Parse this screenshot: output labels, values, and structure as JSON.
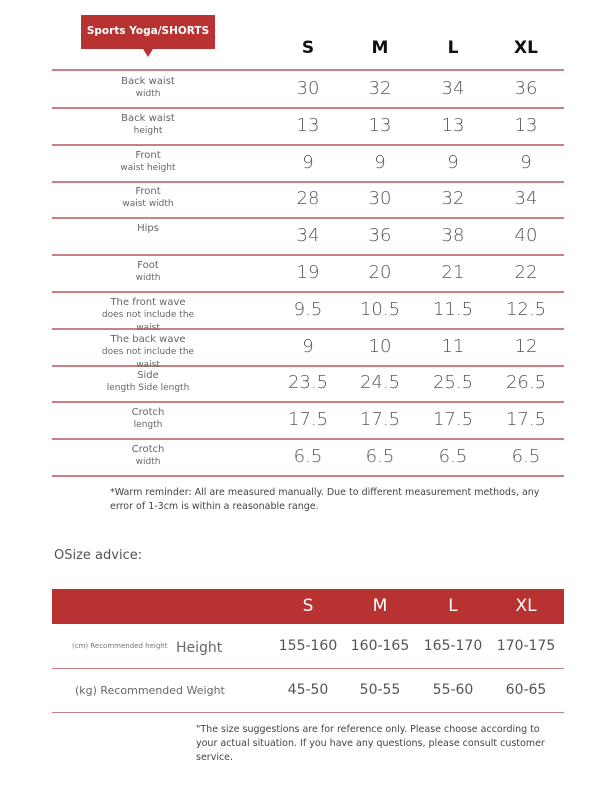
{
  "title": "Sports Yoga/SHORTS",
  "sizes": [
    "S",
    "M",
    "L",
    "XL"
  ],
  "rows": [
    {
      "label1": "Back waist",
      "label2": "width",
      "values": [
        "30",
        "32",
        "34",
        "36"
      ]
    },
    {
      "label1": "Back waist",
      "label2": "height",
      "values": [
        "13",
        "13",
        "13",
        "13"
      ]
    },
    {
      "label1": "Front",
      "label2": "waist height",
      "values": [
        "9",
        "9",
        "9",
        "9"
      ]
    },
    {
      "label1": "Front",
      "label2": "waist width",
      "values": [
        "28",
        "30",
        "32",
        "34"
      ]
    },
    {
      "label1": "Hips",
      "label2": "",
      "values": [
        "34",
        "36",
        "38",
        "40"
      ]
    },
    {
      "label1": "Foot",
      "label2": "width",
      "values": [
        "19",
        "20",
        "21",
        "22"
      ]
    },
    {
      "label1": "The front wave",
      "label2": "does not include the waist",
      "values": [
        "9.5",
        "10.5",
        "11.5",
        "12.5"
      ]
    },
    {
      "label1": "The back wave",
      "label2": "does not include the waist",
      "values": [
        "9",
        "10",
        "11",
        "12"
      ]
    },
    {
      "label1": "Side",
      "label2": "length Side length",
      "values": [
        "23.5",
        "24.5",
        "25.5",
        "26.5"
      ]
    },
    {
      "label1": "Crotch",
      "label2": "length",
      "values": [
        "17.5",
        "17.5",
        "17.5",
        "17.5"
      ]
    },
    {
      "label1": "Crotch",
      "label2": "width",
      "values": [
        "6.5",
        "6.5",
        "6.5",
        "6.5"
      ]
    }
  ],
  "reminder": "*Warm reminder: All are measured manually. Due to different measurement methods, any error of 1-3cm is within a reasonable range.",
  "advice_title": "OSize advice:",
  "advice": {
    "height_small": "(cm) Recommended height",
    "height_label": "Height",
    "height_values": [
      "155-160",
      "160-165",
      "165-170",
      "170-175"
    ],
    "weight_label": "(kg) Recommended Weight",
    "weight_values": [
      "45-50",
      "50-55",
      "55-60",
      "60-65"
    ]
  },
  "footnote": "\"The size suggestions are for reference only. Please choose according to your actual situation. If you have any questions, please consult customer service.",
  "colors": {
    "accent": "#b83232",
    "line": "#c98080"
  }
}
